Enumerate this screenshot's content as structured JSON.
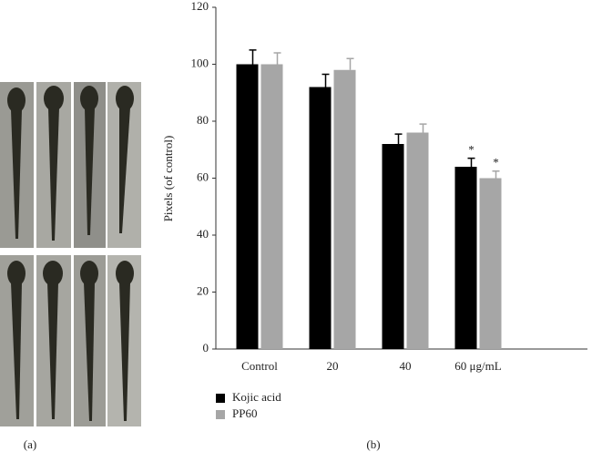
{
  "chart_data": {
    "type": "bar",
    "ylabel": "Pixels (of control)",
    "categories": [
      "Control",
      "20",
      "40",
      "60 μg/mL"
    ],
    "series": [
      {
        "name": "Kojic acid",
        "color": "#000000",
        "values": [
          100,
          92,
          72,
          64
        ],
        "errors": [
          5,
          4.5,
          3.5,
          3
        ]
      },
      {
        "name": "PP60",
        "color": "#a6a6a6",
        "values": [
          100,
          98,
          76,
          60
        ],
        "errors": [
          4,
          4,
          3,
          2.5
        ]
      }
    ],
    "annotations": [
      "*",
      "*"
    ],
    "ylim": [
      0,
      120
    ],
    "yticks": [
      0,
      20,
      40,
      60,
      80,
      100,
      120
    ],
    "panel_labels": [
      "(a)",
      "(b)"
    ]
  }
}
